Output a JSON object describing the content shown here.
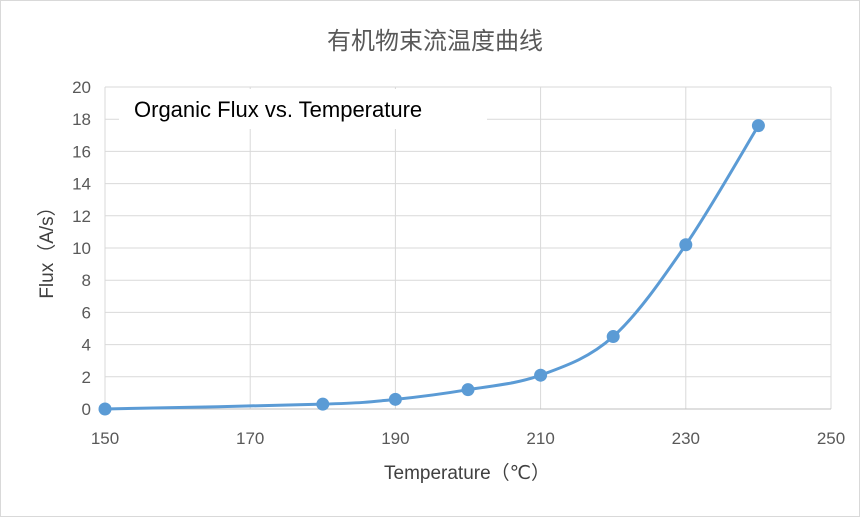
{
  "chart_data": {
    "type": "scatter",
    "title": "有机物束流温度曲线",
    "annotation": "Organic Flux vs. Temperature",
    "xlabel": "Temperature（℃）",
    "ylabel": "Flux（A/s）",
    "xlim": [
      150,
      250
    ],
    "ylim": [
      0,
      20
    ],
    "xticks": [
      150,
      170,
      190,
      210,
      230,
      250
    ],
    "yticks": [
      0,
      2,
      4,
      6,
      8,
      10,
      12,
      14,
      16,
      18,
      20
    ],
    "grid": true,
    "smooth_line": true,
    "series": [
      {
        "color": "#5b9bd5",
        "x": [
          150,
          180,
          190,
          200,
          210,
          220,
          230,
          240
        ],
        "y": [
          0.0,
          0.3,
          0.6,
          1.2,
          2.1,
          4.5,
          10.2,
          17.6
        ]
      }
    ]
  }
}
